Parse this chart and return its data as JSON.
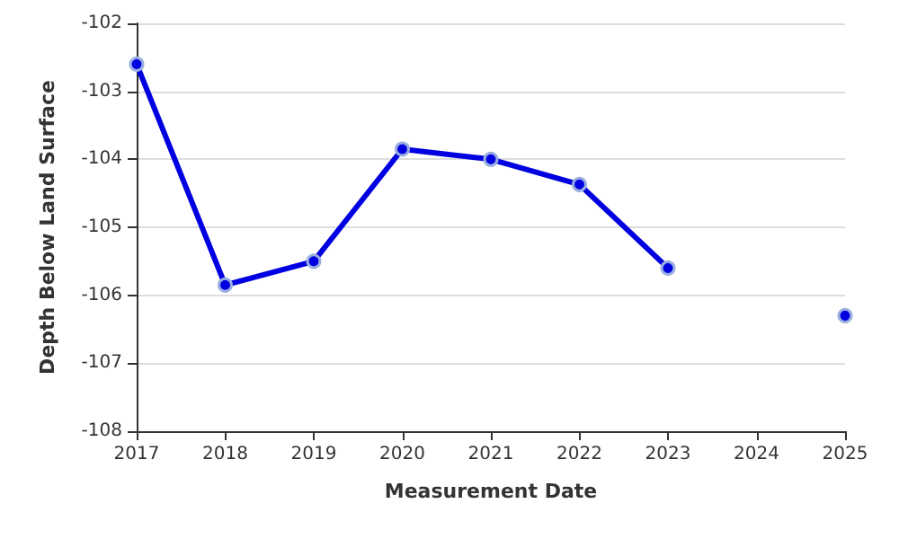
{
  "chart_data": {
    "type": "line",
    "xlabel": "Measurement Date",
    "ylabel": "Depth Below Land Surface",
    "x": [
      2017,
      2018,
      2019,
      2020,
      2021,
      2022,
      2023,
      2024,
      2025
    ],
    "series": [
      {
        "color": "#0000e0",
        "values": [
          -102.6,
          -105.85,
          -105.5,
          -103.85,
          -104.0,
          -104.37,
          -105.6,
          null,
          -106.3
        ]
      }
    ],
    "xlim": [
      2017,
      2025
    ],
    "xticks": [
      2017,
      2018,
      2019,
      2020,
      2021,
      2022,
      2023,
      2024,
      2025
    ],
    "ylim": [
      -108,
      -102
    ],
    "yticks": [
      -108,
      -107,
      -106,
      -105,
      -104,
      -103,
      -102
    ],
    "grid": "y",
    "marker": "circle",
    "line_style": "solid"
  }
}
